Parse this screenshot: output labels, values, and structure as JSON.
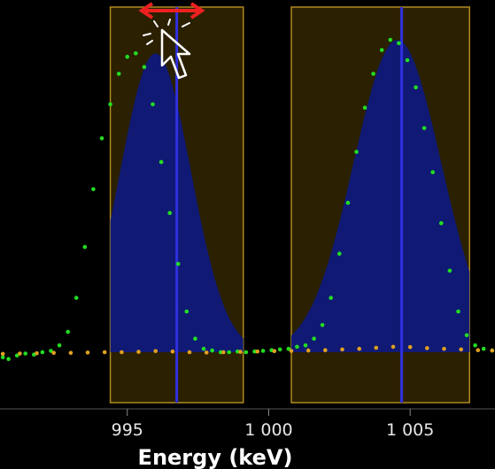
{
  "chart_data": {
    "type": "scatter",
    "xlabel": "Energy (keV)",
    "xlim": [
      990.5,
      1008
    ],
    "ylim": [
      -5,
      100
    ],
    "x_ticks": [
      995,
      1000,
      1005
    ],
    "x_tick_labels": [
      "995",
      "1 000",
      "1 005"
    ],
    "grid": false,
    "roi_regions": [
      {
        "x_start": 994.4,
        "x_end": 999.1,
        "centroid": 996.75
      },
      {
        "x_start": 1000.8,
        "x_end": 1007.1,
        "centroid": 1004.7
      }
    ],
    "series": [
      {
        "kind": "data_points",
        "color": "#22dd22",
        "x": [
          990.6,
          990.8,
          991.1,
          991.4,
          991.7,
          992.0,
          992.3,
          992.6,
          992.9,
          993.2,
          993.5,
          993.8,
          994.1,
          994.4,
          994.7,
          995.0,
          995.3,
          995.6,
          995.9,
          996.2,
          996.5,
          996.8,
          997.1,
          997.4,
          997.7,
          998.0,
          998.3,
          998.6,
          998.9,
          999.2,
          999.5,
          999.8,
          1000.1,
          1000.4,
          1000.7,
          1001.0,
          1001.3,
          1001.6,
          1001.9,
          1002.2,
          1002.5,
          1002.8,
          1003.1,
          1003.4,
          1003.7,
          1004.0,
          1004.3,
          1004.6,
          1004.9,
          1005.2,
          1005.5,
          1005.8,
          1006.1,
          1006.4,
          1006.7,
          1007.0,
          1007.3,
          1007.6,
          1007.9
        ],
        "y": [
          2.5,
          2.0,
          3.0,
          3.6,
          3.3,
          4.0,
          4.4,
          6.0,
          10.0,
          20.0,
          35.0,
          52.0,
          67.0,
          77.0,
          86.0,
          91.0,
          92.0,
          88.0,
          77.0,
          60.0,
          45.0,
          30.0,
          16.0,
          8.0,
          5.0,
          4.5,
          4.0,
          4.0,
          4.2,
          4.0,
          4.2,
          4.4,
          4.6,
          4.8,
          5.0,
          5.6,
          6.0,
          8.0,
          12.0,
          20.0,
          33.0,
          48.0,
          63.0,
          76.0,
          86.0,
          93.0,
          96.0,
          95.0,
          90.0,
          82.0,
          70.0,
          57.0,
          42.0,
          28.0,
          16.0,
          9.0,
          6.0,
          5.0,
          4.5
        ]
      },
      {
        "kind": "continuum_points",
        "color": "#e0a020",
        "x": [
          990.6,
          991.2,
          991.8,
          992.4,
          993.0,
          993.6,
          994.2,
          994.8,
          995.4,
          996.0,
          996.6,
          997.2,
          997.8,
          998.4,
          999.0,
          999.6,
          1000.2,
          1000.8,
          1001.4,
          1002.0,
          1002.6,
          1003.2,
          1003.8,
          1004.4,
          1005.0,
          1005.6,
          1006.2,
          1006.8,
          1007.4,
          1007.9
        ],
        "y": [
          3.5,
          3.6,
          3.7,
          3.8,
          3.8,
          3.9,
          4.0,
          4.0,
          4.1,
          4.3,
          4.2,
          4.0,
          3.9,
          4.0,
          4.1,
          4.2,
          4.3,
          4.4,
          4.5,
          4.6,
          4.8,
          5.0,
          5.3,
          5.6,
          5.5,
          5.2,
          5.0,
          4.8,
          4.6,
          4.5
        ]
      }
    ],
    "peaks": [
      {
        "center": 996.0,
        "height": 92,
        "sigma": 1.25,
        "fill_color": "#0f1a7a"
      },
      {
        "center": 1004.55,
        "height": 96,
        "sigma": 1.55,
        "fill_color": "#0f1a7a"
      }
    ],
    "colors": {
      "roi_fill": "#2b2000",
      "roi_border": "#b08a20",
      "centroid_line": "#3030e0",
      "drag_arrow": "#ee2020",
      "cursor": "#ffffff"
    }
  }
}
